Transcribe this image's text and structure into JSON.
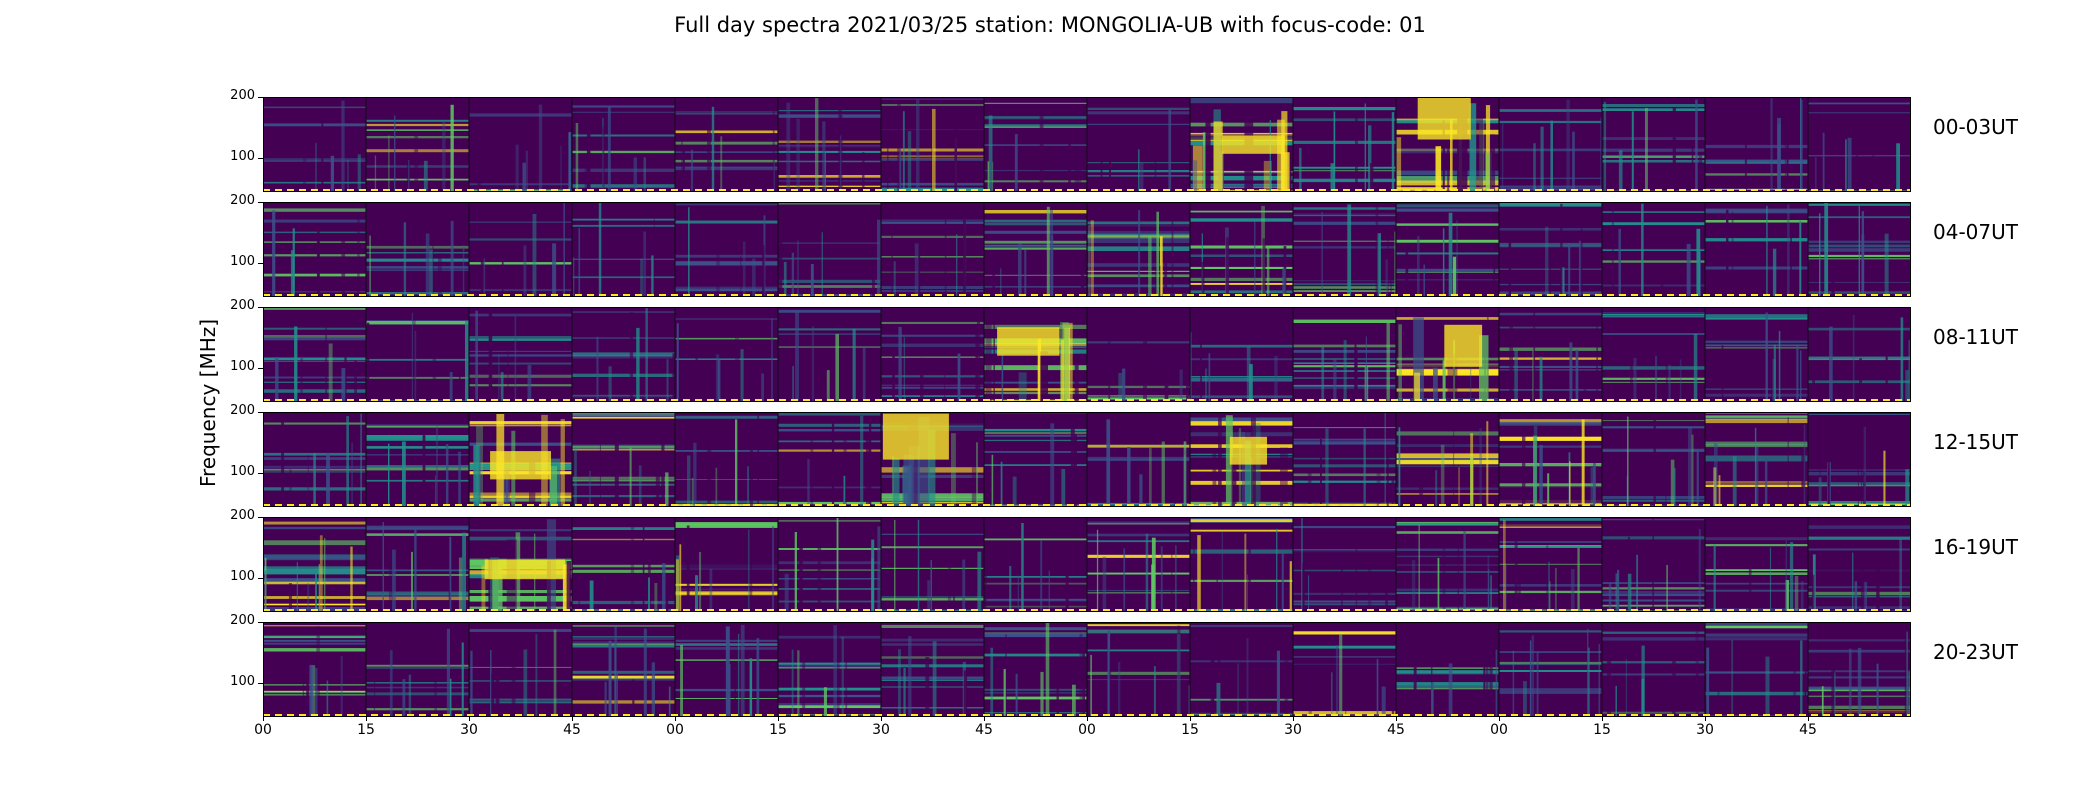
{
  "title": "Full day spectra 2021/03/25 station: MONGOLIA-UB with focus-code: 01",
  "chart_data": {
    "type": "heatmap",
    "title": "Full day spectra 2021/03/25 station: MONGOLIA-UB with focus-code: 01",
    "ylabel": "Frequency [MHz]",
    "xlabel": "",
    "ylim": [
      45,
      200
    ],
    "y_ticks": [
      "100",
      "200"
    ],
    "x_ticks": [
      "00",
      "15",
      "30",
      "45",
      "00",
      "15",
      "30",
      "45",
      "00",
      "15",
      "30",
      "45",
      "00",
      "15",
      "30",
      "45"
    ],
    "colormap": [
      "#440154",
      "#3b528b",
      "#21918c",
      "#5ec962",
      "#fde725"
    ],
    "rows": [
      {
        "label": "00-03UT",
        "intensity": [
          0.3,
          0.45,
          0.35,
          0.35,
          0.4,
          0.45,
          0.5,
          0.4,
          0.2,
          0.85,
          0.35,
          0.8,
          0.25,
          0.35,
          0.35,
          0.3
        ]
      },
      {
        "label": "04-07UT",
        "intensity": [
          0.3,
          0.35,
          0.3,
          0.3,
          0.3,
          0.35,
          0.35,
          0.4,
          0.55,
          0.5,
          0.35,
          0.4,
          0.35,
          0.3,
          0.3,
          0.3
        ]
      },
      {
        "label": "08-11UT",
        "intensity": [
          0.35,
          0.35,
          0.3,
          0.3,
          0.35,
          0.35,
          0.35,
          0.6,
          0.3,
          0.3,
          0.4,
          0.6,
          0.45,
          0.3,
          0.35,
          0.35
        ]
      },
      {
        "label": "12-15UT",
        "intensity": [
          0.35,
          0.3,
          0.7,
          0.45,
          0.5,
          0.45,
          0.6,
          0.35,
          0.45,
          0.6,
          0.4,
          0.55,
          0.55,
          0.45,
          0.55,
          0.5
        ]
      },
      {
        "label": "16-19UT",
        "intensity": [
          0.55,
          0.45,
          0.6,
          0.45,
          0.55,
          0.35,
          0.35,
          0.35,
          0.45,
          0.55,
          0.4,
          0.45,
          0.5,
          0.45,
          0.35,
          0.35
        ]
      },
      {
        "label": "20-23UT",
        "intensity": [
          0.4,
          0.35,
          0.35,
          0.45,
          0.35,
          0.35,
          0.3,
          0.5,
          0.4,
          0.35,
          0.4,
          0.35,
          0.4,
          0.35,
          0.35,
          0.45
        ]
      }
    ]
  }
}
